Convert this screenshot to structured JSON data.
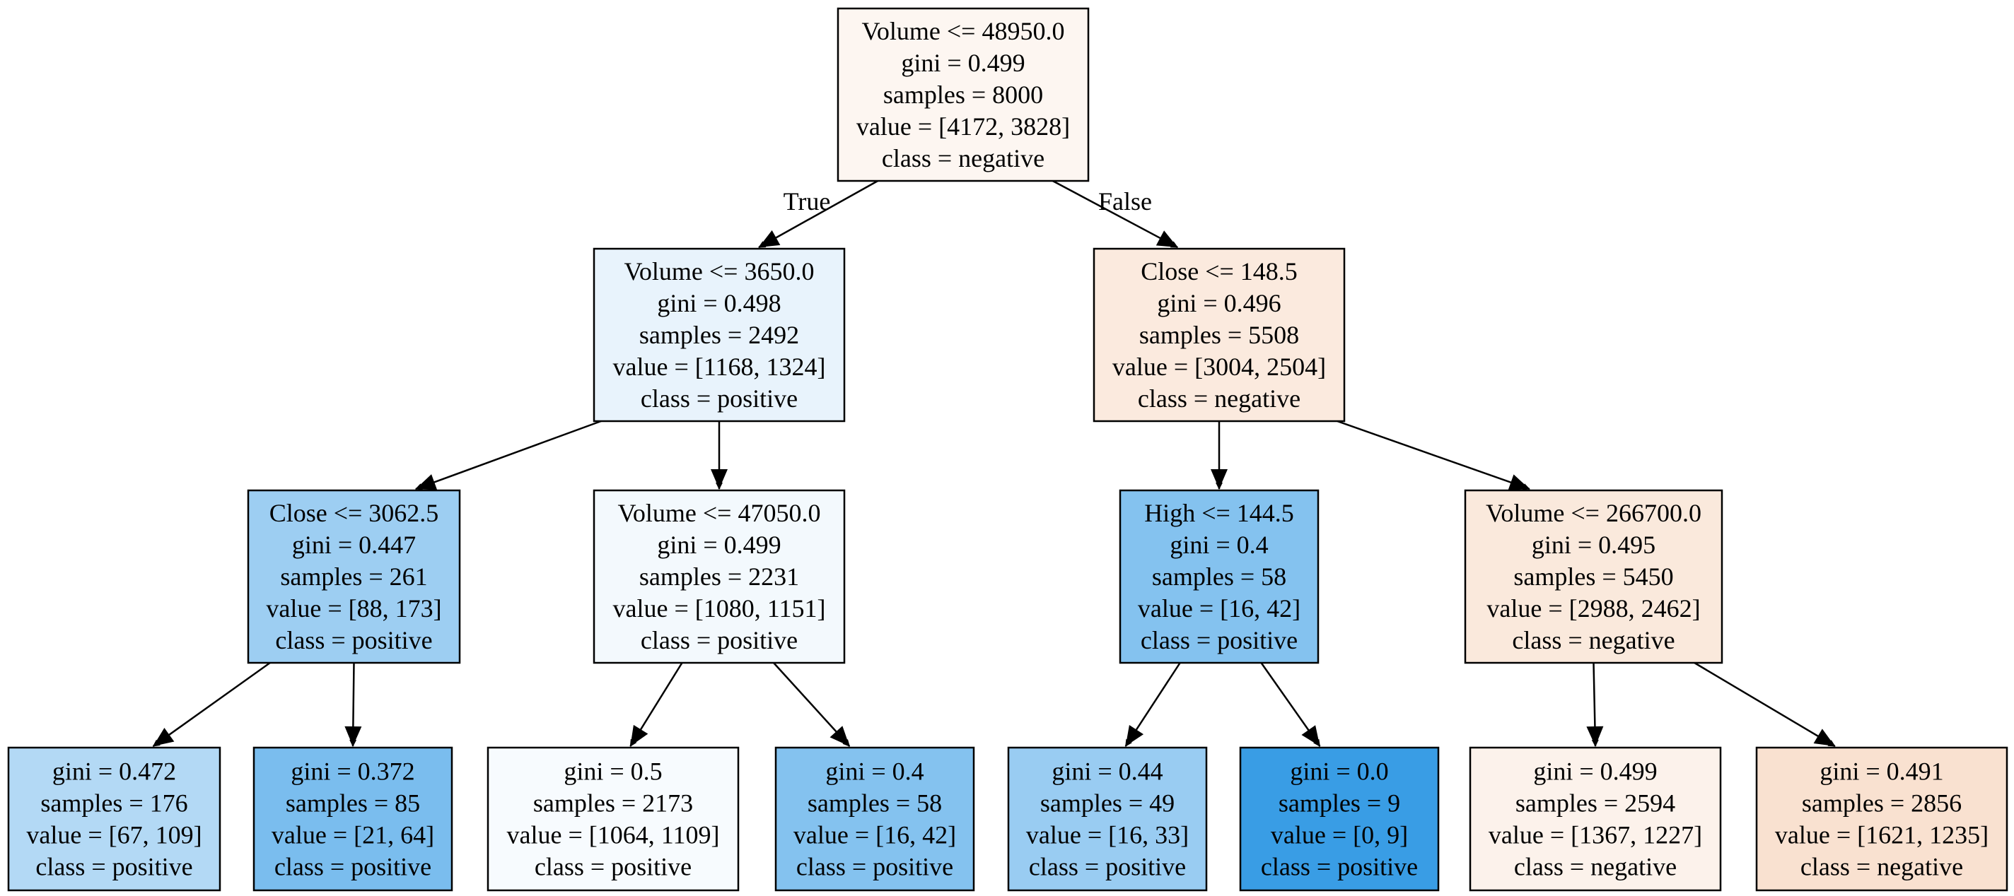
{
  "tree": {
    "nodes": [
      {
        "id": "root",
        "lines": [
          "Volume <= 48950.0",
          "gini = 0.499",
          "samples = 8000",
          "value = [4172, 3828]",
          "class = negative"
        ],
        "fill": "#fdf6f1"
      },
      {
        "id": "n1",
        "lines": [
          "Volume <= 3650.0",
          "gini = 0.498",
          "samples = 2492",
          "value = [1168, 1324]",
          "class = positive"
        ],
        "fill": "#e8f3fc"
      },
      {
        "id": "n2",
        "lines": [
          "Close <= 148.5",
          "gini = 0.496",
          "samples = 5508",
          "value = [3004, 2504]",
          "class = negative"
        ],
        "fill": "#fbeade"
      },
      {
        "id": "n3",
        "lines": [
          "Close <= 3062.5",
          "gini = 0.447",
          "samples = 261",
          "value = [88, 173]",
          "class = positive"
        ],
        "fill": "#9dcef2"
      },
      {
        "id": "n4",
        "lines": [
          "Volume <= 47050.0",
          "gini = 0.499",
          "samples = 2231",
          "value = [1080, 1151]",
          "class = positive"
        ],
        "fill": "#f3f9fd"
      },
      {
        "id": "n5",
        "lines": [
          "High <= 144.5",
          "gini = 0.4",
          "samples = 58",
          "value = [16, 42]",
          "class = positive"
        ],
        "fill": "#84c2ef"
      },
      {
        "id": "n6",
        "lines": [
          "Volume <= 266700.0",
          "gini = 0.495",
          "samples = 5450",
          "value = [2988, 2462]",
          "class = negative"
        ],
        "fill": "#fae9dc"
      },
      {
        "id": "l1",
        "lines": [
          "gini = 0.472",
          "samples = 176",
          "value = [67, 109]",
          "class = positive"
        ],
        "fill": "#b3d9f5"
      },
      {
        "id": "l2",
        "lines": [
          "gini = 0.372",
          "samples = 85",
          "value = [21, 64]",
          "class = positive"
        ],
        "fill": "#7abdee"
      },
      {
        "id": "l3",
        "lines": [
          "gini = 0.5",
          "samples = 2173",
          "value = [1064, 1109]",
          "class = positive"
        ],
        "fill": "#f7fbfe"
      },
      {
        "id": "l4",
        "lines": [
          "gini = 0.4",
          "samples = 58",
          "value = [16, 42]",
          "class = positive"
        ],
        "fill": "#84c2ef"
      },
      {
        "id": "l5",
        "lines": [
          "gini = 0.44",
          "samples = 49",
          "value = [16, 33]",
          "class = positive"
        ],
        "fill": "#99ccf2"
      },
      {
        "id": "l6",
        "lines": [
          "gini = 0.0",
          "samples = 9",
          "value = [0, 9]",
          "class = positive"
        ],
        "fill": "#399de5"
      },
      {
        "id": "l7",
        "lines": [
          "gini = 0.499",
          "samples = 2594",
          "value = [1367, 1227]",
          "class = negative"
        ],
        "fill": "#fcf2eb"
      },
      {
        "id": "l8",
        "lines": [
          "gini = 0.491",
          "samples = 2856",
          "value = [1621, 1235]",
          "class = negative"
        ],
        "fill": "#f9e1d0"
      }
    ],
    "edges": [
      {
        "from": "root",
        "to": "n1",
        "label": "True"
      },
      {
        "from": "root",
        "to": "n2",
        "label": "False"
      },
      {
        "from": "n1",
        "to": "n3"
      },
      {
        "from": "n1",
        "to": "n4"
      },
      {
        "from": "n2",
        "to": "n5"
      },
      {
        "from": "n2",
        "to": "n6"
      },
      {
        "from": "n3",
        "to": "l1"
      },
      {
        "from": "n3",
        "to": "l2"
      },
      {
        "from": "n4",
        "to": "l3"
      },
      {
        "from": "n4",
        "to": "l4"
      },
      {
        "from": "n5",
        "to": "l5"
      },
      {
        "from": "n5",
        "to": "l6"
      },
      {
        "from": "n6",
        "to": "l7"
      },
      {
        "from": "n6",
        "to": "l8"
      }
    ]
  }
}
